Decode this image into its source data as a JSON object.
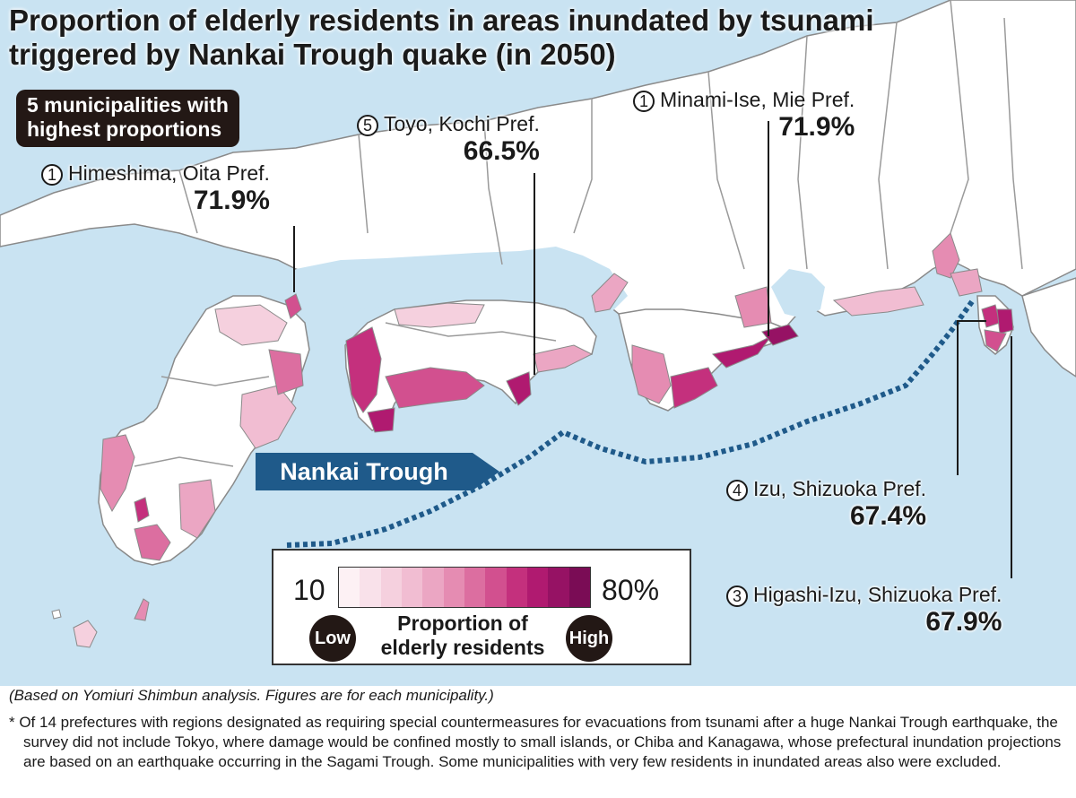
{
  "title": {
    "line1": "Proportion of elderly residents in areas inundated by tsunami",
    "line2": "triggered by Nankai Trough quake (in 2050)"
  },
  "badge": {
    "line1": "5 municipalities with",
    "line2": "highest proportions"
  },
  "callouts": [
    {
      "rank": "1",
      "name": "Himeshima, Oita Pref.",
      "value": "71.9%"
    },
    {
      "rank": "5",
      "name": "Toyo, Kochi Pref.",
      "value": "66.5%"
    },
    {
      "rank": "1",
      "name": "Minami-Ise, Mie Pref.",
      "value": "71.9%"
    },
    {
      "rank": "4",
      "name": "Izu, Shizuoka Pref.",
      "value": "67.4%"
    },
    {
      "rank": "3",
      "name": "Higashi-Izu, Shizuoka Pref.",
      "value": "67.9%"
    }
  ],
  "trough_label": "Nankai Trough",
  "legend": {
    "min": "10",
    "max": "80%",
    "caption_line1": "Proportion of",
    "caption_line2": "elderly residents",
    "low": "Low",
    "high": "High",
    "colors": [
      "#fdf1f4",
      "#f9e1ea",
      "#f5d0de",
      "#f1bdd2",
      "#eba6c3",
      "#e58cb2",
      "#dc6ea0",
      "#d2508f",
      "#c4307d",
      "#b01a70",
      "#961264",
      "#7a0c55"
    ]
  },
  "colors": {
    "sea": "#c9e3f2",
    "land": "#ffffff",
    "trough_line": "#1f5a8a",
    "badge_bg": "#231815"
  },
  "source": "(Based on Yomiuri Shimbun analysis. Figures are for each municipality.)",
  "note": "* Of 14 prefectures with regions designated as requiring special countermeasures for evacuations from tsunami after a huge Nankai Trough earthquake, the survey did not include Tokyo, where damage would be confined mostly to small islands, or Chiba and Kanagawa, whose prefectural inundation projections are based on an earthquake occurring in the Sagami Trough. Some municipalities with very few residents in inundated areas also were excluded."
}
